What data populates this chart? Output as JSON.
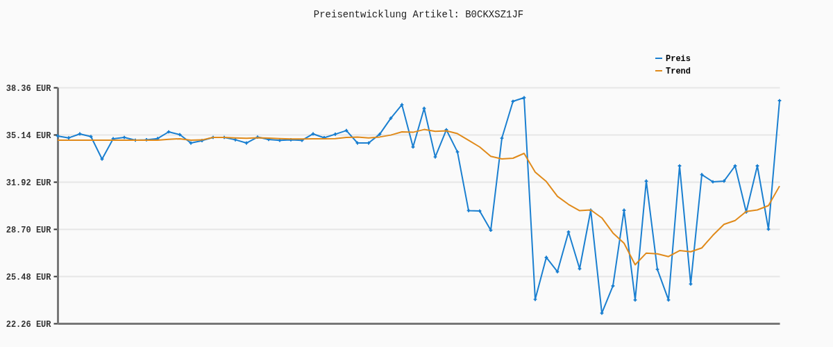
{
  "chart_data": {
    "type": "line",
    "title": "Preisentwicklung Artikel: B0CKXSZ1JF",
    "categories": [
      null,
      null,
      null,
      null,
      null,
      null,
      null,
      null,
      null,
      null,
      null,
      null,
      null,
      null,
      null,
      null,
      null,
      null,
      null,
      null,
      null,
      null,
      null,
      null,
      null,
      null,
      null,
      null,
      null,
      null,
      null,
      null,
      null,
      null,
      null,
      null,
      null,
      null,
      null,
      null,
      null,
      null,
      null,
      null,
      null,
      null,
      null,
      null,
      null,
      null,
      null,
      null,
      null,
      null,
      null,
      null,
      null,
      null,
      null,
      null,
      null,
      null,
      null,
      null,
      null,
      null
    ],
    "series": [
      {
        "name": "Preis",
        "color": "#1a7fd0",
        "marker": "cross",
        "values": [
          35.05,
          34.92,
          35.19,
          35.01,
          33.47,
          34.86,
          34.95,
          34.76,
          34.79,
          34.87,
          35.33,
          35.14,
          34.57,
          34.73,
          34.95,
          34.95,
          34.79,
          34.57,
          34.97,
          34.81,
          34.75,
          34.79,
          34.75,
          35.19,
          34.93,
          35.17,
          35.42,
          34.57,
          34.57,
          35.17,
          36.26,
          37.18,
          34.3,
          36.93,
          33.62,
          35.47,
          33.96,
          29.96,
          29.93,
          28.62,
          34.9,
          37.41,
          37.66,
          23.9,
          26.76,
          25.79,
          28.5,
          25.99,
          29.98,
          22.96,
          24.82,
          29.98,
          23.86,
          31.97,
          25.95,
          23.86,
          33.01,
          24.95,
          32.41,
          31.92,
          31.97,
          33.01,
          29.86,
          33.01,
          28.69,
          37.46
        ]
      },
      {
        "name": "Trend",
        "color": "#e08a1a",
        "marker": "none",
        "values": [
          34.76,
          34.76,
          34.76,
          34.76,
          34.76,
          34.76,
          34.76,
          34.76,
          34.76,
          34.76,
          34.82,
          34.86,
          34.76,
          34.78,
          34.95,
          34.95,
          34.92,
          34.89,
          34.93,
          34.9,
          34.87,
          34.84,
          34.84,
          34.86,
          34.86,
          34.87,
          34.95,
          34.97,
          34.92,
          34.98,
          35.11,
          35.33,
          35.3,
          35.49,
          35.36,
          35.4,
          35.21,
          34.76,
          34.3,
          33.66,
          33.48,
          33.53,
          33.86,
          32.58,
          31.94,
          30.93,
          30.38,
          29.95,
          30.0,
          29.46,
          28.43,
          27.73,
          26.26,
          27.06,
          27.01,
          26.82,
          27.23,
          27.15,
          27.41,
          28.27,
          29.02,
          29.28,
          29.9,
          30.0,
          30.3,
          31.63
        ]
      }
    ],
    "ylim": [
      22.26,
      38.36
    ],
    "yticks": [
      {
        "value": 22.26,
        "label": "22.26 EUR"
      },
      {
        "value": 25.48,
        "label": "25.48 EUR"
      },
      {
        "value": 28.7,
        "label": "28.70 EUR"
      },
      {
        "value": 31.92,
        "label": "31.92 EUR"
      },
      {
        "value": 35.14,
        "label": "35.14 EUR"
      },
      {
        "value": 38.36,
        "label": "38.36 EUR"
      }
    ],
    "grid": "y",
    "legend": "top right",
    "line_style": "solid"
  }
}
